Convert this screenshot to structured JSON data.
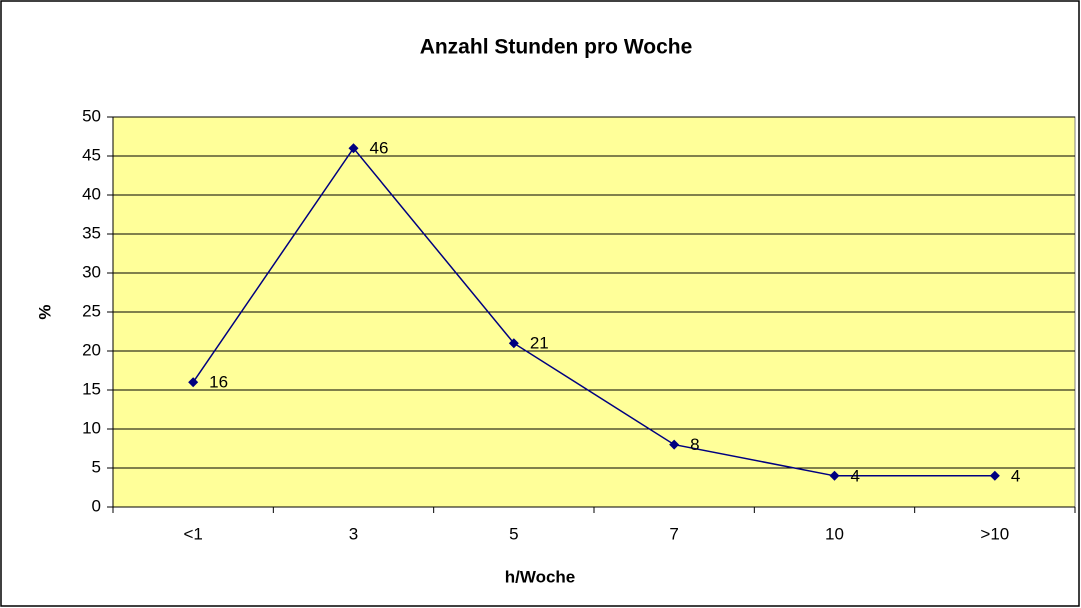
{
  "chart_data": {
    "type": "line",
    "title": "Anzahl Stunden pro Woche",
    "x_label": "h/Woche",
    "y_label": "%",
    "categories": [
      "<1",
      "3",
      "5",
      "7",
      "10",
      ">10"
    ],
    "values": [
      16,
      46,
      21,
      8,
      4,
      4
    ],
    "color": "#000080",
    "plot_background": "#ffff99",
    "ylim": [
      0,
      50
    ],
    "yticks": [
      0,
      5,
      10,
      15,
      20,
      25,
      30,
      35,
      40,
      45,
      50
    ],
    "grid": true
  }
}
